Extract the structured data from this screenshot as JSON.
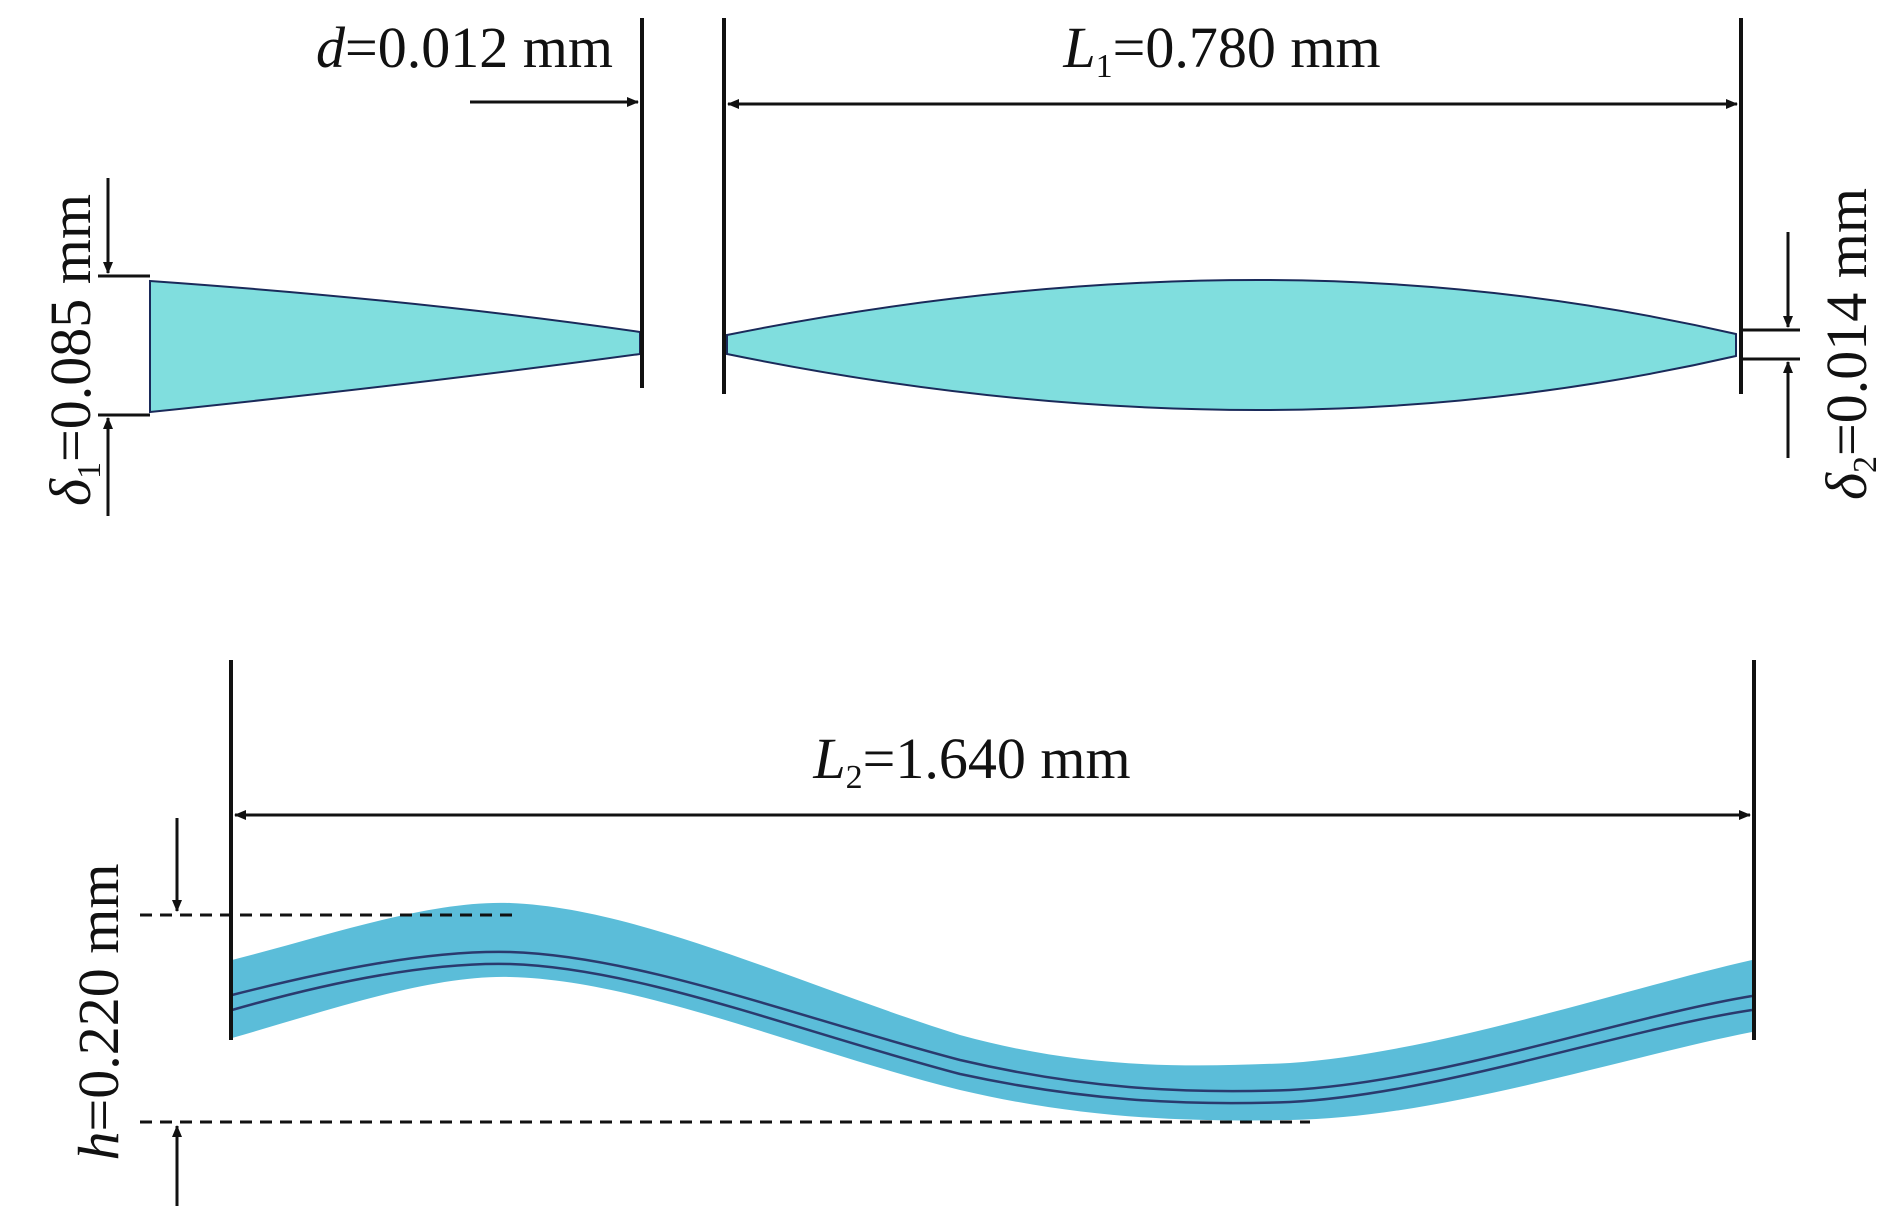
{
  "top_diagram": {
    "gap_label": {
      "symbol": "d",
      "value": "=0.012 mm"
    },
    "length1_label": {
      "symbol": "L",
      "sub": "1",
      "value": "=0.780 mm"
    },
    "delta1_label": {
      "symbol": "δ",
      "sub": "1",
      "value": "=0.085 mm"
    },
    "delta2_label": {
      "symbol": "δ",
      "sub": "2",
      "value": "=0.014 mm"
    }
  },
  "bottom_diagram": {
    "length2_label": {
      "symbol": "L",
      "sub": "2",
      "value": "=1.640 mm"
    },
    "height_label": {
      "symbol": "h",
      "value": "=0.220 mm"
    }
  },
  "colors": {
    "fin_fill": "#80dede",
    "wave_fill": "#5bbdd9",
    "line": "#111111",
    "centerline": "#2a3a6e"
  }
}
